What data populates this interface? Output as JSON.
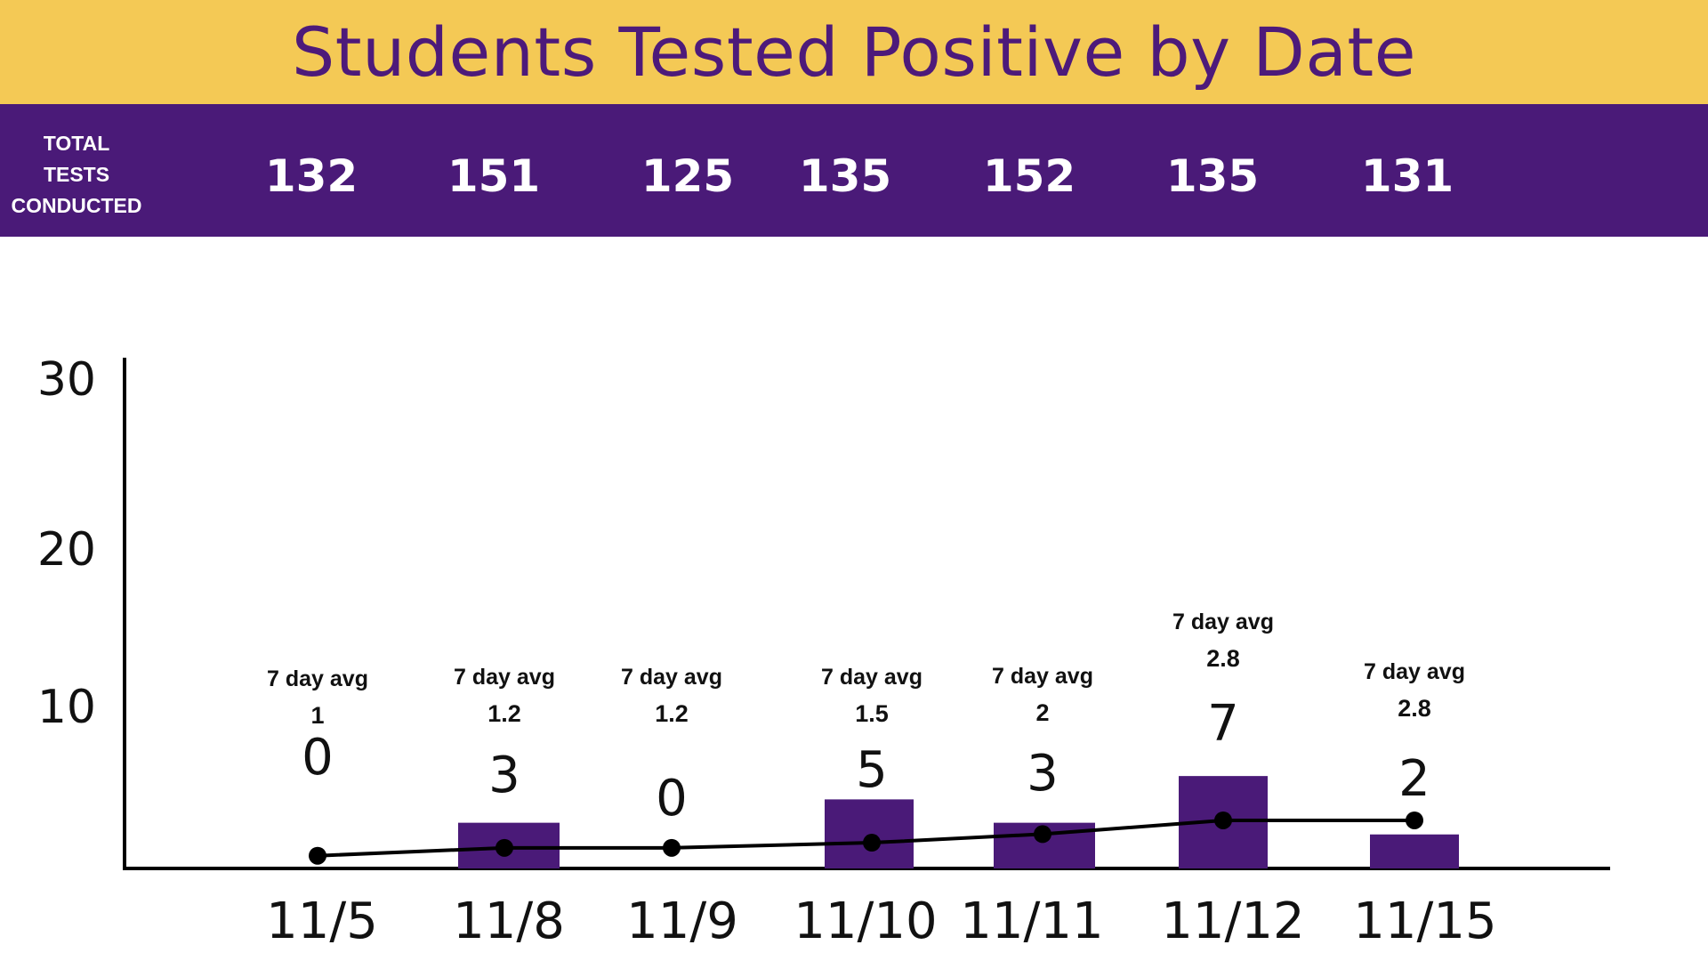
{
  "colors": {
    "title_band": "#F4C955",
    "title_text": "#4D1A7A",
    "tests_band": "#4A1A78",
    "bar": "#4A1A78",
    "line": "#000000",
    "axis": "#000000"
  },
  "header": {
    "title": "Students Tested Positive by Date"
  },
  "tests": {
    "label_lines": [
      "TOTAL",
      "TESTS",
      "CONDUCTED"
    ],
    "counts": [
      "132",
      "151",
      "125",
      "135",
      "152",
      "135",
      "131"
    ]
  },
  "chart_data": {
    "type": "bar",
    "title": "Students Tested Positive by Date",
    "categories": [
      "11/5",
      "11/8",
      "11/9",
      "11/10",
      "11/11",
      "11/12",
      "11/15"
    ],
    "series": [
      {
        "type": "bar",
        "values": [
          0,
          3,
          0,
          5,
          3,
          7,
          2
        ],
        "data_labels": [
          "0",
          "3",
          "0",
          "5",
          "3",
          "7",
          "2"
        ]
      },
      {
        "type": "line",
        "values": [
          1,
          1.2,
          1.2,
          1.5,
          2,
          2.8,
          2.8
        ],
        "caption": "7 day avg",
        "data_labels": [
          "1",
          "1.2",
          "1.2",
          "1.5",
          "2",
          "2.8",
          "2.8"
        ]
      }
    ],
    "yticks": [
      "10",
      "20",
      "30"
    ],
    "ylim": [
      0,
      32
    ],
    "xlabel": "",
    "ylabel": "",
    "grid": false,
    "legend": "none"
  }
}
